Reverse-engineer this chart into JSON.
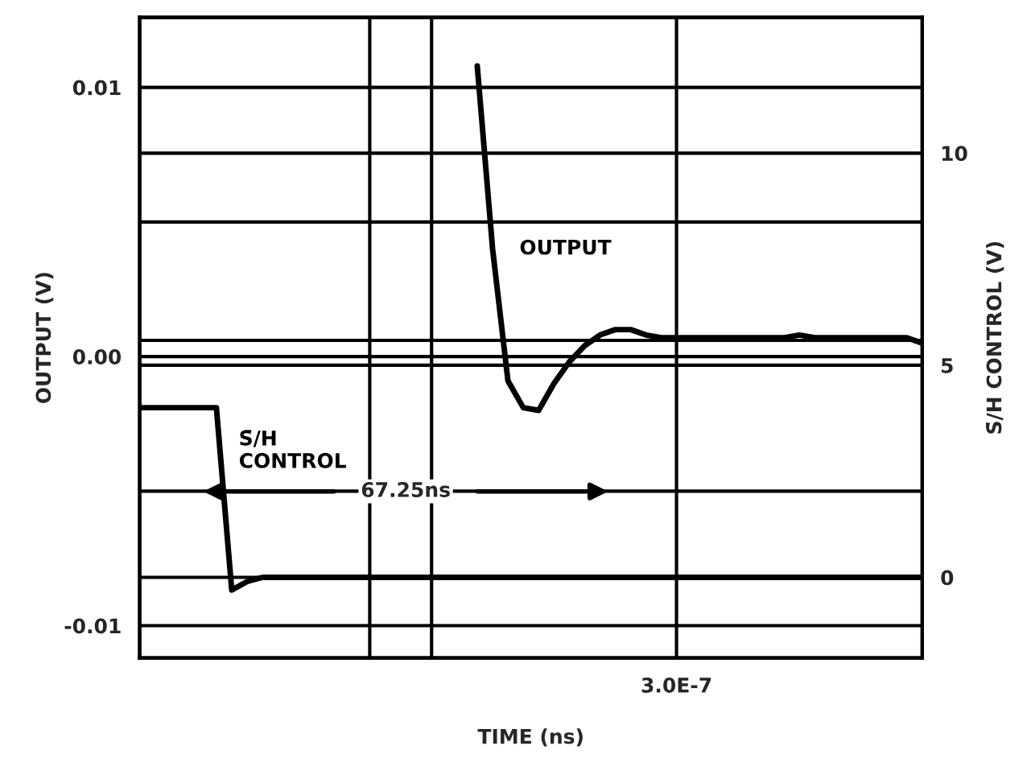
{
  "chart_data": {
    "type": "line",
    "xlabel": "TIME (ns)",
    "ylabel": "OUTPUT (V)",
    "y2label": "S̄/H CONTROL (V)",
    "categories": [
      null,
      null,
      null,
      null,
      null,
      null,
      null,
      null,
      null,
      null,
      null,
      null,
      null,
      null,
      null,
      null,
      null,
      null,
      null,
      null,
      null,
      null,
      null,
      null,
      null,
      null,
      null,
      null,
      null,
      null,
      null,
      null,
      null,
      null,
      null,
      null,
      null,
      null,
      null,
      null,
      null,
      null,
      null,
      null,
      null,
      null,
      null,
      null,
      null,
      null,
      null,
      null
    ],
    "ylim": [
      -0.0112,
      0.0126
    ],
    "yticks": [
      {
        "value": -0.01,
        "label": "-0.01"
      },
      {
        "value": -0.005,
        "label": null
      },
      {
        "value": 0.0,
        "label": "0.00"
      },
      {
        "value": 0.0006,
        "label": null
      },
      {
        "value": 0.005,
        "label": null
      },
      {
        "value": 0.01,
        "label": "0.01"
      }
    ],
    "y2lim": [
      -1.9,
      13.2
    ],
    "y2ticks": [
      0,
      5,
      10
    ],
    "grid": true,
    "legend": false,
    "marker": "none",
    "line_style": "solid",
    "series": [
      {
        "name": "OUTPUT",
        "color": "#000000",
        "values": [
          null,
          null,
          null,
          null,
          null,
          null,
          null,
          null,
          null,
          null,
          null,
          null,
          null,
          null,
          null,
          null,
          null,
          null,
          null,
          null,
          null,
          null,
          0.0108,
          0.004,
          -0.0009,
          -0.0019,
          -0.002,
          -0.001,
          -0.0002,
          0.0004,
          0.0008,
          0.001,
          0.001,
          0.0008,
          0.0007,
          0.0007,
          0.0007,
          0.0007,
          0.0007,
          0.0007,
          0.0007,
          0.0007,
          0.0007,
          0.0008,
          0.0007,
          0.0007,
          0.0007,
          0.0007,
          0.0007,
          0.0007,
          0.0007,
          0.0005
        ]
      },
      {
        "name": "S̄/H\nCONTROL",
        "color": "#000000",
        "axis": "y2",
        "values": [
          4.0,
          4.0,
          4.0,
          4.0,
          4.0,
          4.0,
          -0.3,
          -0.1,
          0.0,
          0.0,
          0.0,
          0.0,
          0.0,
          0.0,
          0.0,
          0.0,
          0.0,
          0.0,
          0.0,
          0.0,
          0.0,
          0.0,
          0.0,
          0.0,
          0.0,
          0.0,
          0.0,
          0.0,
          0.0,
          0.0,
          0.0,
          0.0,
          0.0,
          0.0,
          0.0,
          0.0,
          0.0,
          0.0,
          0.0,
          0.0,
          0.0,
          0.0,
          0.0,
          0.0,
          0.0,
          0.0,
          0.0,
          0.0,
          0.0,
          0.0,
          0.0,
          0.0
        ]
      }
    ],
    "annotations": [
      "67.25ns",
      "3.0E-7"
    ]
  }
}
